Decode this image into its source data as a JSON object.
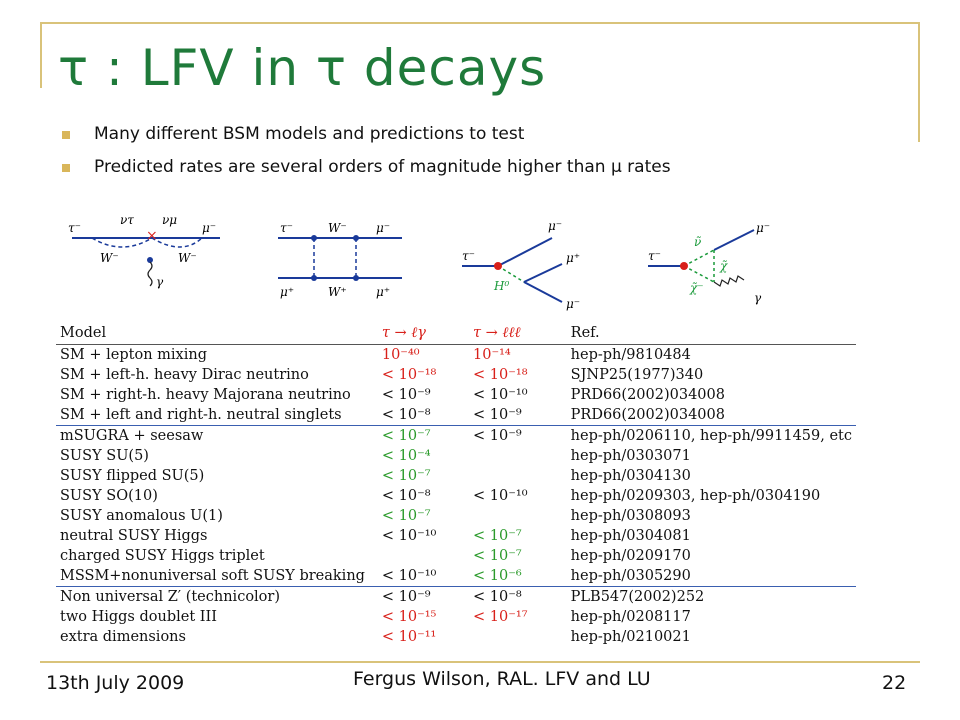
{
  "slide": {
    "title": "τ : LFV in τ decays",
    "bullets": [
      "Many different BSM models and predictions to test",
      "Predicted rates are several orders of magnitude higher than  μ rates"
    ],
    "diagram_labels": {
      "d1": [
        "τ⁻",
        "ντ",
        "×",
        "νμ",
        "μ⁻",
        "W⁻",
        "W⁻",
        "γ"
      ],
      "d2": [
        "τ⁻",
        "W⁻",
        "μ⁻",
        "μ⁺",
        "W⁺",
        "μ⁺"
      ],
      "d3": [
        "τ⁻",
        "μ⁻",
        "μ⁺",
        "H⁰",
        "μ⁻"
      ],
      "d4": [
        "τ⁻",
        "ν̃",
        "χ̃",
        "μ⁻",
        "χ̃⁻",
        "γ"
      ]
    },
    "table": {
      "headers": [
        "Model",
        "τ → ℓγ",
        "τ → ℓℓℓ",
        "Ref."
      ],
      "rows": [
        {
          "model": "SM + lepton mixing",
          "lg": "10⁻⁴⁰",
          "lll": "10⁻¹⁴",
          "ref": "hep-ph/9810484",
          "lg_color": "red",
          "lll_color": "red",
          "group": false
        },
        {
          "model": "SM + left-h. heavy Dirac neutrino",
          "lg": "< 10⁻¹⁸",
          "lll": "< 10⁻¹⁸",
          "ref": "SJNP25(1977)340",
          "lg_color": "red",
          "lll_color": "red",
          "group": false
        },
        {
          "model": "SM + right-h. heavy Majorana neutrino",
          "lg": "< 10⁻⁹",
          "lll": "< 10⁻¹⁰",
          "ref": "PRD66(2002)034008",
          "lg_color": "black",
          "lll_color": "black",
          "group": false
        },
        {
          "model": "SM + left and right-h. neutral singlets",
          "lg": "< 10⁻⁸",
          "lll": "< 10⁻⁹",
          "ref": "PRD66(2002)034008",
          "lg_color": "black",
          "lll_color": "black",
          "group": false
        },
        {
          "model": "mSUGRA + seesaw",
          "lg": "< 10⁻⁷",
          "lll": "< 10⁻⁹",
          "ref": "hep-ph/0206110, hep-ph/9911459, etc",
          "lg_color": "green",
          "lll_color": "black",
          "group": true
        },
        {
          "model": "SUSY SU(5)",
          "lg": "< 10⁻⁴",
          "lll": "",
          "ref": "hep-ph/0303071",
          "lg_color": "green",
          "lll_color": "black",
          "group": false
        },
        {
          "model": "SUSY flipped SU(5)",
          "lg": "< 10⁻⁷",
          "lll": "",
          "ref": "hep-ph/0304130",
          "lg_color": "green",
          "lll_color": "black",
          "group": false
        },
        {
          "model": "SUSY SO(10)",
          "lg": "< 10⁻⁸",
          "lll": "< 10⁻¹⁰",
          "ref": "hep-ph/0209303, hep-ph/0304190",
          "lg_color": "black",
          "lll_color": "black",
          "group": false
        },
        {
          "model": "SUSY anomalous U(1)",
          "lg": "< 10⁻⁷",
          "lll": "",
          "ref": "hep-ph/0308093",
          "lg_color": "green",
          "lll_color": "black",
          "group": false
        },
        {
          "model": "neutral SUSY Higgs",
          "lg": "< 10⁻¹⁰",
          "lll": "< 10⁻⁷",
          "ref": "hep-ph/0304081",
          "lg_color": "black",
          "lll_color": "green",
          "group": false
        },
        {
          "model": "charged SUSY Higgs triplet",
          "lg": "",
          "lll": "< 10⁻⁷",
          "ref": "hep-ph/0209170",
          "lg_color": "black",
          "lll_color": "green",
          "group": false
        },
        {
          "model": "MSSM+nonuniversal soft SUSY breaking",
          "lg": "< 10⁻¹⁰",
          "lll": "< 10⁻⁶",
          "ref": "hep-ph/0305290",
          "lg_color": "black",
          "lll_color": "green",
          "group": false
        },
        {
          "model": "Non universal Z′ (technicolor)",
          "lg": "< 10⁻⁹",
          "lll": "< 10⁻⁸",
          "ref": "PLB547(2002)252",
          "lg_color": "black",
          "lll_color": "black",
          "group": true
        },
        {
          "model": "two Higgs doublet III",
          "lg": "< 10⁻¹⁵",
          "lll": "< 10⁻¹⁷",
          "ref": "hep-ph/0208117",
          "lg_color": "red",
          "lll_color": "red",
          "group": false
        },
        {
          "model": "extra dimensions",
          "lg": "< 10⁻¹¹",
          "lll": "",
          "ref": "hep-ph/0210021",
          "lg_color": "red",
          "lll_color": "black",
          "group": false
        }
      ]
    },
    "footer": {
      "date": "13th July 2009",
      "author": "Fergus Wilson, RAL. LFV and LU",
      "page": "22"
    },
    "colors": {
      "title": "#1f7a3a",
      "frame": "#d9c37a",
      "bullet": "#d9b65a",
      "red": "#d8201a",
      "green": "#2a9a2a",
      "table_rule": "#3a5fb0"
    }
  }
}
